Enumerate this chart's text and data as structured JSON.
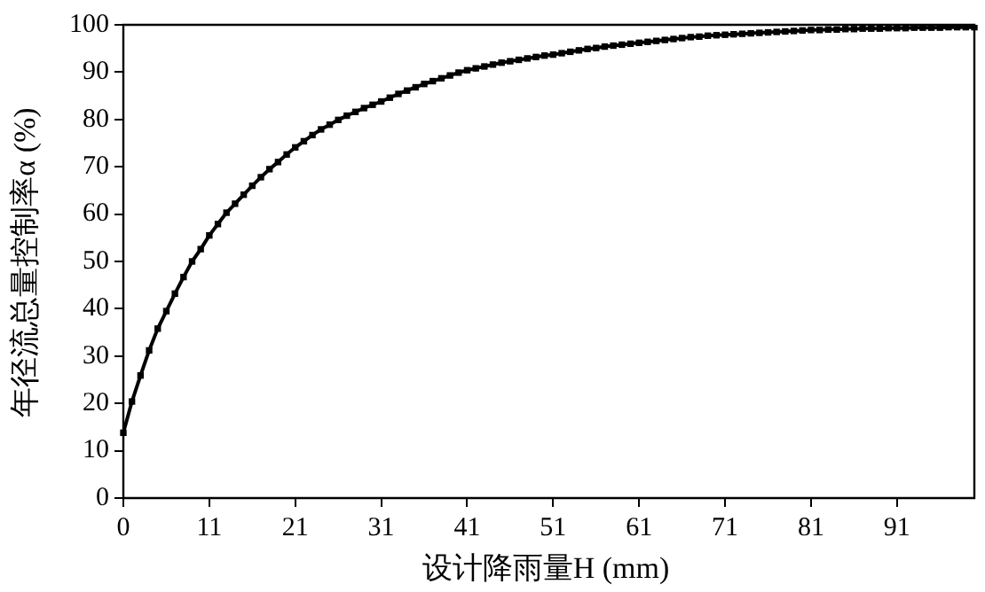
{
  "chart_data": {
    "type": "line",
    "xlabel": "设计降雨量H (mm)",
    "ylabel": "年径流总量控制率α (%)",
    "categories": [
      "0",
      null,
      null,
      null,
      null,
      null,
      null,
      null,
      null,
      null,
      "11",
      null,
      null,
      null,
      null,
      null,
      null,
      null,
      null,
      null,
      "21",
      null,
      null,
      null,
      null,
      null,
      null,
      null,
      null,
      null,
      "31",
      null,
      null,
      null,
      null,
      null,
      null,
      null,
      null,
      null,
      "41",
      null,
      null,
      null,
      null,
      null,
      null,
      null,
      null,
      null,
      "51",
      null,
      null,
      null,
      null,
      null,
      null,
      null,
      null,
      null,
      "61",
      null,
      null,
      null,
      null,
      null,
      null,
      null,
      null,
      null,
      "71",
      null,
      null,
      null,
      null,
      null,
      null,
      null,
      null,
      null,
      "81",
      null,
      null,
      null,
      null,
      null,
      null,
      null,
      null,
      null,
      "91",
      null,
      null,
      null,
      null,
      null,
      null,
      null,
      null,
      null
    ],
    "series": [
      {
        "color": "#000000",
        "values": [
          13.8,
          20.4,
          25.9,
          31.2,
          35.8,
          39.5,
          43.2,
          46.7,
          50,
          52.6,
          55.5,
          57.9,
          60.3,
          62.2,
          64.1,
          66,
          67.8,
          69.5,
          71,
          72.6,
          74.1,
          75.4,
          76.7,
          77.9,
          78.9,
          79.9,
          80.8,
          81.6,
          82.4,
          83.1,
          83.8,
          84.6,
          85.4,
          86.1,
          86.8,
          87.5,
          88.1,
          88.7,
          89.3,
          89.9,
          90.4,
          90.8,
          91.2,
          91.6,
          92,
          92.3,
          92.6,
          92.9,
          93.2,
          93.5,
          93.7,
          94,
          94.3,
          94.6,
          94.9,
          95.1,
          95.4,
          95.6,
          95.8,
          96,
          96.2,
          96.4,
          96.6,
          96.8,
          97,
          97.2,
          97.4,
          97.5,
          97.7,
          97.8,
          97.9,
          98,
          98.1,
          98.2,
          98.3,
          98.4,
          98.5,
          98.6,
          98.7,
          98.8,
          98.9,
          98.9,
          99,
          99,
          99.1,
          99.1,
          99.2,
          99.2,
          99.2,
          99.3,
          99.3,
          99.3,
          99.4,
          99.4,
          99.4,
          99.4,
          99.5,
          99.5,
          99.5,
          99.5
        ]
      }
    ],
    "ylim": [
      0,
      100
    ],
    "yticks": [
      0,
      10,
      20,
      30,
      40,
      50,
      60,
      70,
      80,
      90,
      100
    ],
    "grid": false,
    "legend": false,
    "marker": "square",
    "line_style": "solid"
  }
}
